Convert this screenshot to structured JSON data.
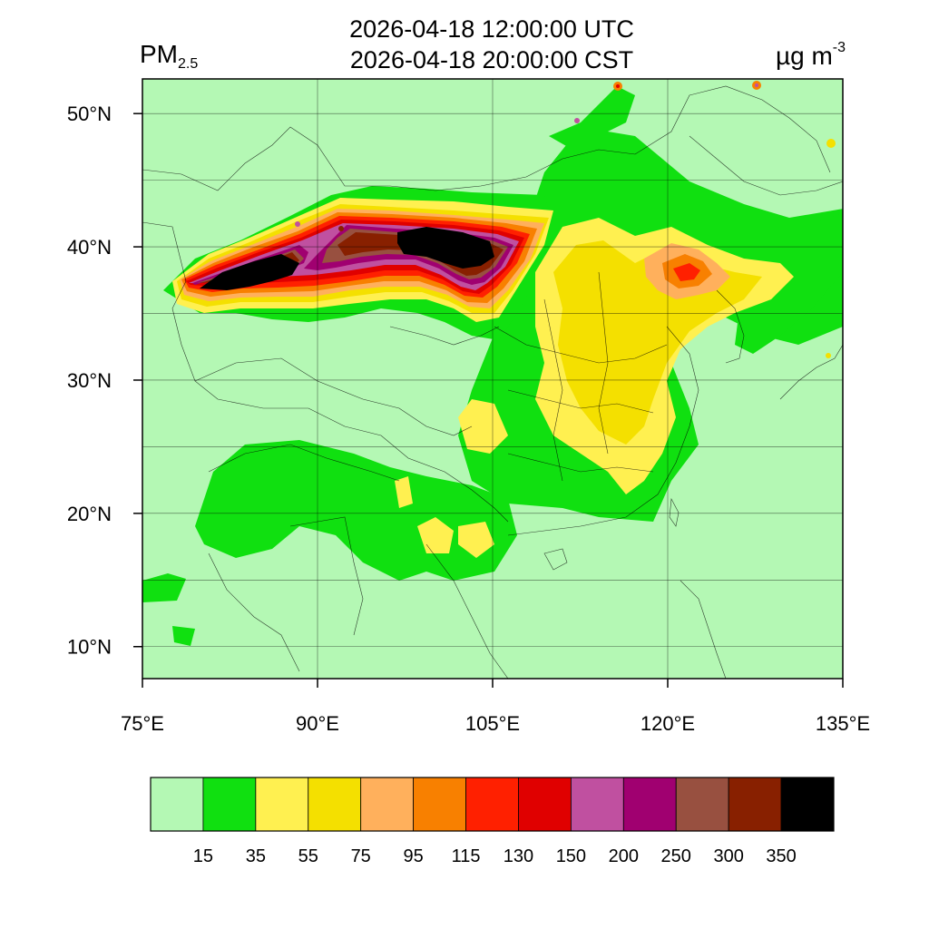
{
  "title": {
    "line1": "2026-04-18 12:00:00 UTC",
    "line2": "2026-04-18 20:00:00 CST"
  },
  "variable": {
    "name": "PM",
    "subscript": "2.5"
  },
  "units": {
    "base": "µg m",
    "exponent": "-3"
  },
  "map": {
    "lon_range": [
      75,
      135
    ],
    "lat_range": [
      7.6,
      52.6
    ],
    "lon_ticks": [
      {
        "value": 75,
        "label": "75°E"
      },
      {
        "value": 90,
        "label": "90°E"
      },
      {
        "value": 105,
        "label": "105°E"
      },
      {
        "value": 120,
        "label": "120°E"
      },
      {
        "value": 135,
        "label": "135°E"
      }
    ],
    "lat_ticks": [
      {
        "value": 10,
        "label": "10°N"
      },
      {
        "value": 20,
        "label": "20°N"
      },
      {
        "value": 30,
        "label": "30°N"
      },
      {
        "value": 40,
        "label": "40°N"
      },
      {
        "value": 50,
        "label": "50°N"
      }
    ],
    "background_color": "#b4f8b4"
  },
  "colorbar": {
    "colors": [
      "#b4f8b4",
      "#10e010",
      "#fff050",
      "#f4e000",
      "#ffb05c",
      "#f88000",
      "#ff2000",
      "#e00000",
      "#c050a0",
      "#a00070",
      "#985040",
      "#882000",
      "#000000"
    ],
    "labels": [
      "15",
      "35",
      "55",
      "75",
      "95",
      "115",
      "130",
      "150",
      "200",
      "250",
      "300",
      "350"
    ]
  }
}
